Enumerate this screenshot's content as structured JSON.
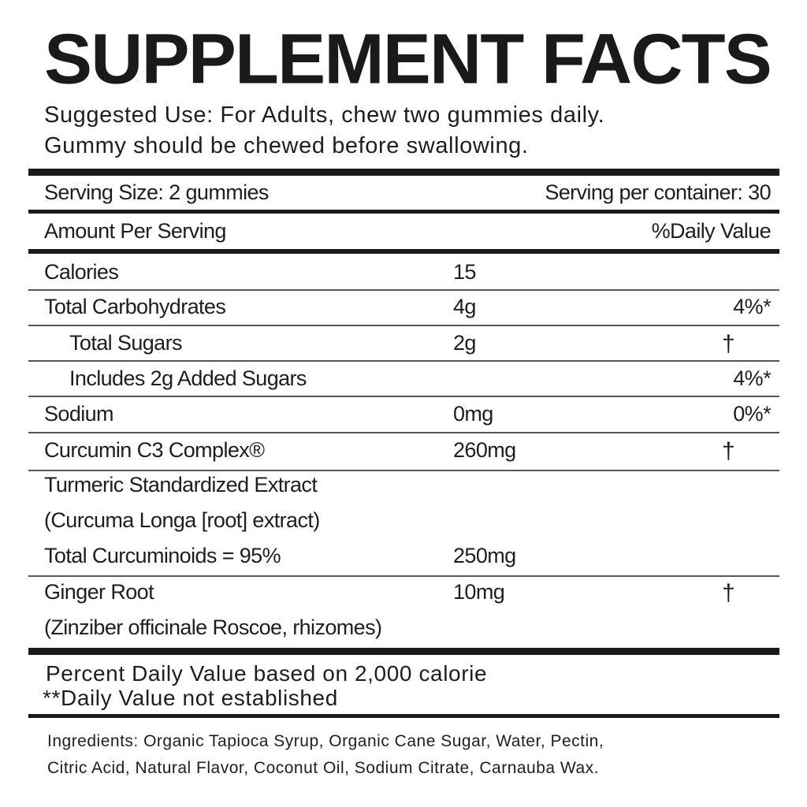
{
  "title": "SUPPLEMENT FACTS",
  "suggested_use": [
    "Suggested Use: For Adults, chew two gummies daily.",
    "Gummy should be chewed before swallowing."
  ],
  "serving_size": "Serving Size: 2 gummies",
  "servings_per_container": "Serving per container: 30",
  "amount_header": "Amount Per Serving",
  "dv_header": "%Daily Value",
  "rows": [
    {
      "label": "Calories",
      "amount": "15",
      "dv": ""
    },
    {
      "label": "Total Carbohydrates",
      "amount": "4g",
      "dv": "4%*"
    },
    {
      "label": "Total Sugars",
      "amount": "2g",
      "dv": "†"
    },
    {
      "label": "Includes 2g Added Sugars",
      "amount": "",
      "dv": "4%*"
    },
    {
      "label": "Sodium",
      "amount": "0mg",
      "dv": "0%*"
    },
    {
      "label": "Curcumin C3 Complex®",
      "amount": "260mg",
      "dv": "†"
    },
    {
      "label": "Turmeric Standardized Extract",
      "amount": "",
      "dv": ""
    },
    {
      "label": "(Curcuma Longa [root] extract)",
      "amount": "",
      "dv": ""
    },
    {
      "label": "Total Curcuminoids = 95%",
      "amount": "250mg",
      "dv": ""
    },
    {
      "label": "Ginger Root",
      "amount": "10mg",
      "dv": "†"
    },
    {
      "label": "(Zinziber officinale Roscoe, rhizomes)",
      "amount": "",
      "dv": ""
    }
  ],
  "footnotes": [
    " Percent Daily Value based on 2,000 calorie",
    "**Daily Value not established"
  ],
  "ingredients": [
    "Ingredients: Organic Tapioca Syrup, Organic Cane Sugar, Water, Pectin,",
    "Citric Acid, Natural Flavor, Coconut Oil, Sodium Citrate, Carnauba Wax."
  ]
}
